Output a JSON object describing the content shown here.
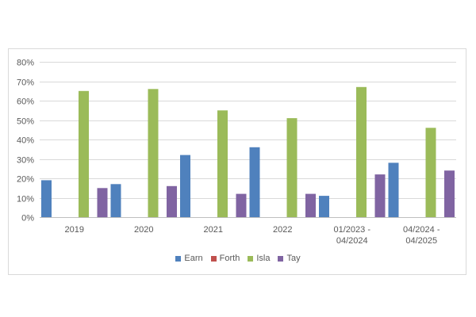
{
  "chart_data": {
    "type": "bar",
    "title": "",
    "xlabel": "",
    "ylabel": "",
    "categories": [
      "2019",
      "2020",
      "2021",
      "2022",
      "01/2023 - 04/2024",
      "04/2024 - 04/2025"
    ],
    "category_lines": [
      [
        "2019"
      ],
      [
        "2020"
      ],
      [
        "2021"
      ],
      [
        "2022"
      ],
      [
        "01/2023 -",
        "04/2024"
      ],
      [
        "04/2024 -",
        "04/2025"
      ]
    ],
    "series": [
      {
        "name": "Earn",
        "color": "#4f81bd",
        "values": [
          19,
          17,
          32,
          36,
          11,
          28
        ]
      },
      {
        "name": "Forth",
        "color": "#c0504d",
        "values": [
          0,
          0,
          0,
          0,
          0,
          0
        ]
      },
      {
        "name": "Isla",
        "color": "#9bbb59",
        "values": [
          65,
          66,
          55,
          51,
          67,
          46
        ]
      },
      {
        "name": "Tay",
        "color": "#8064a2",
        "values": [
          15,
          16,
          12,
          12,
          22,
          24
        ]
      }
    ],
    "ylim": [
      0,
      80
    ],
    "yticks": [
      0,
      10,
      20,
      30,
      40,
      50,
      60,
      70,
      80
    ],
    "ytick_labels": [
      "0%",
      "10%",
      "20%",
      "30%",
      "40%",
      "50%",
      "60%",
      "70%",
      "80%"
    ],
    "grid": true,
    "legend_position": "bottom"
  }
}
